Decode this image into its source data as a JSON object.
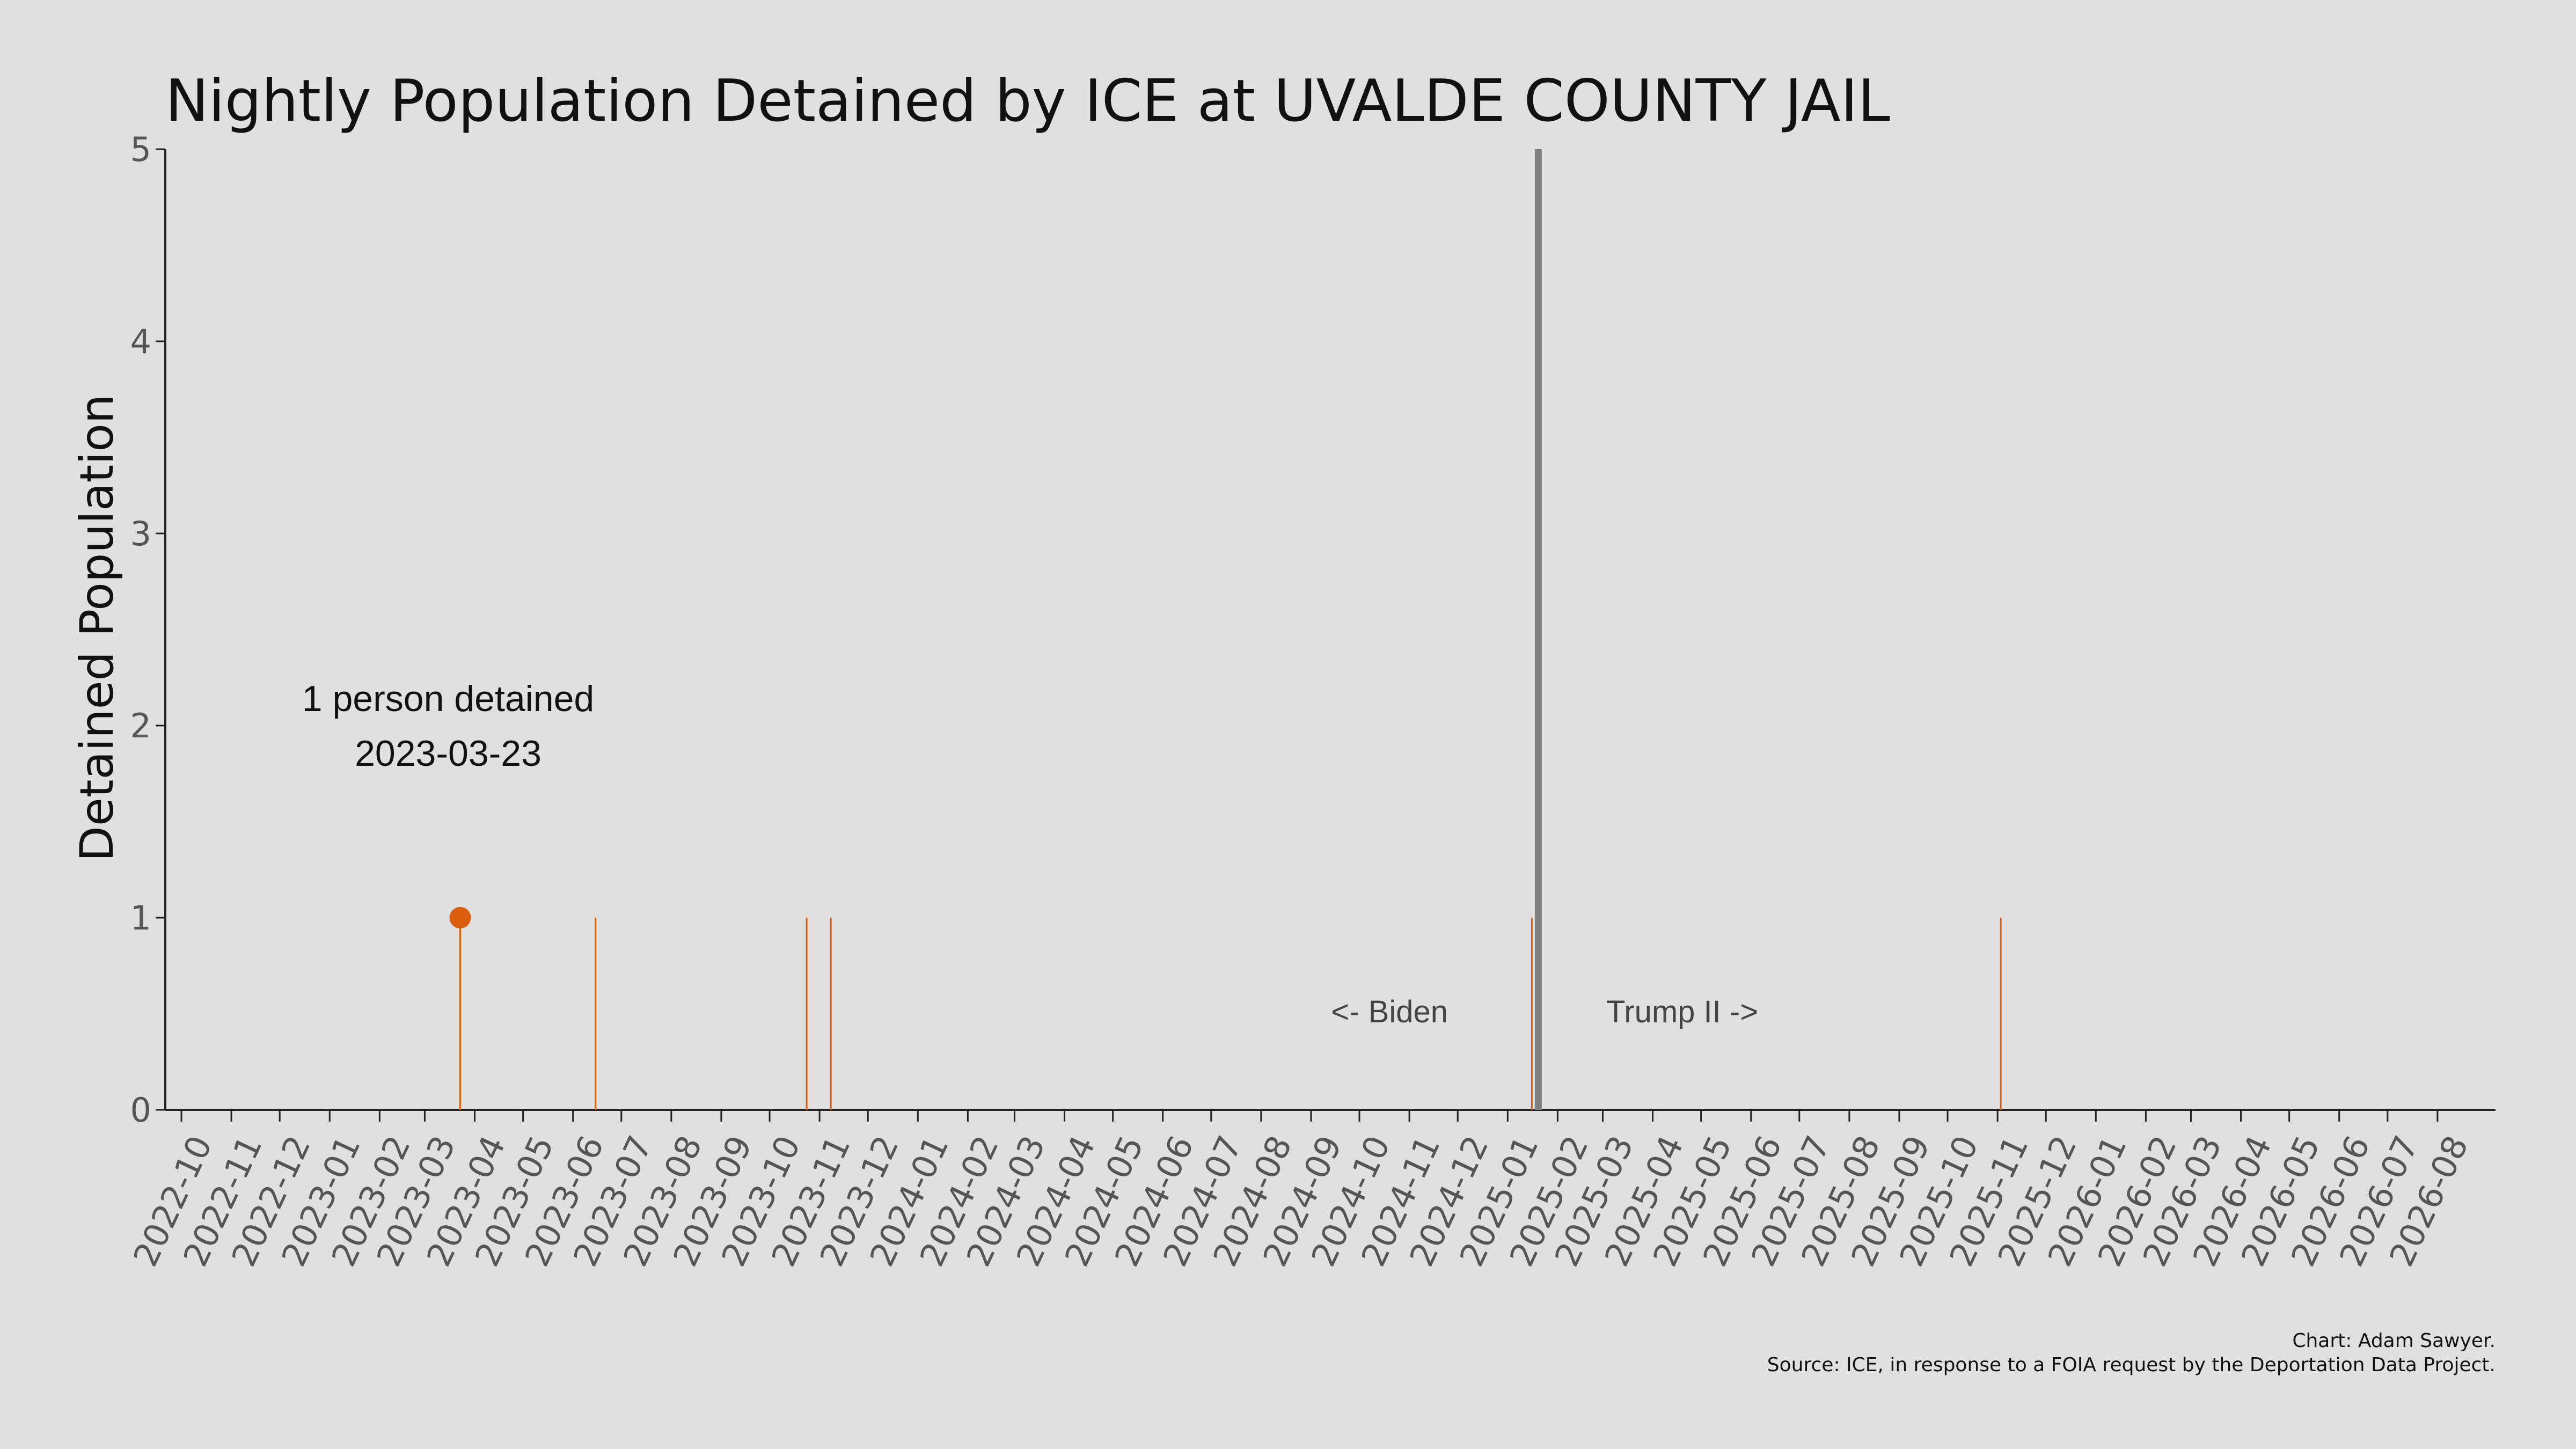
{
  "chart_data": {
    "type": "line",
    "title": "Nightly Population Detained by ICE at UVALDE COUNTY JAIL",
    "xlabel": "",
    "ylabel": "Detained Population",
    "xlim": [
      "2022-09-21",
      "2026-09-06"
    ],
    "ylim": [
      0,
      5
    ],
    "y_ticks": [
      0,
      1,
      2,
      3,
      4,
      5
    ],
    "x_ticks": [
      "2022-10",
      "2022-11",
      "2022-12",
      "2023-01",
      "2023-02",
      "2023-03",
      "2023-04",
      "2023-05",
      "2023-06",
      "2023-07",
      "2023-08",
      "2023-09",
      "2023-10",
      "2023-11",
      "2023-12",
      "2024-01",
      "2024-02",
      "2024-03",
      "2024-04",
      "2024-05",
      "2024-06",
      "2024-07",
      "2024-08",
      "2024-09",
      "2024-10",
      "2024-11",
      "2024-12",
      "2025-01",
      "2025-02",
      "2025-03",
      "2025-04",
      "2025-05",
      "2025-06",
      "2025-07",
      "2025-08",
      "2025-09",
      "2025-10",
      "2025-11",
      "2025-12",
      "2026-01",
      "2026-02",
      "2026-03",
      "2026-04",
      "2026-05",
      "2026-06",
      "2026-07",
      "2026-08"
    ],
    "grid": false,
    "series": [
      {
        "color": "#d95f0e",
        "points": [
          {
            "date": "2023-03-23",
            "value": 1
          },
          {
            "date": "2023-06-15",
            "value": 1
          },
          {
            "date": "2023-10-24",
            "value": 1
          },
          {
            "date": "2023-11-08",
            "value": 1
          },
          {
            "date": "2025-01-16",
            "value": 1
          },
          {
            "date": "2025-11-03",
            "value": 1
          }
        ]
      }
    ],
    "highlight": {
      "date": "2023-03-23",
      "value": 1,
      "color": "#d95f0e"
    },
    "annotation_lines": [
      "1 person detained",
      "2023-03-23"
    ],
    "event_line": {
      "date": "2025-01-20",
      "color": "#808080"
    },
    "era_labels": {
      "left": "<- Biden",
      "right": "Trump II ->"
    },
    "credits": [
      "Chart: Adam Sawyer.",
      "Source: ICE, in response to a FOIA request by the Deportation Data Project."
    ]
  }
}
